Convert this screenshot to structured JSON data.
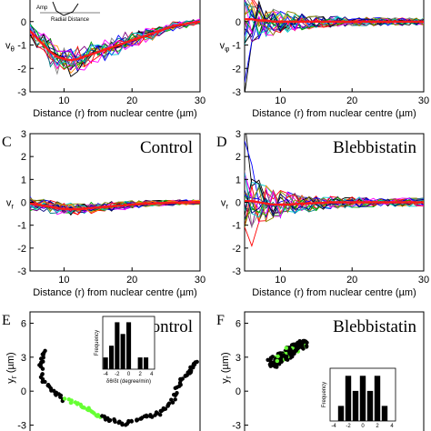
{
  "panels": [
    {
      "id": "A",
      "letter": "",
      "ylabel": "v",
      "ysub": "θ",
      "condition": "",
      "inset_label": "Radial Distance",
      "inset_y": "Amp",
      "xlabel": "Distance (r) from nuclear centre (µm)"
    },
    {
      "id": "B",
      "letter": "",
      "ylabel": "v",
      "ysub": "φ",
      "condition": "",
      "xlabel": "Distance (r) from nuclear centre (µm)"
    },
    {
      "id": "C",
      "letter": "C",
      "ylabel": "v",
      "ysub": "r",
      "condition": "Control",
      "xlabel": "Distance (r) from nuclear centre (µm)"
    },
    {
      "id": "D",
      "letter": "D",
      "ylabel": "v",
      "ysub": "r",
      "condition": "Blebbistatin",
      "xlabel": "Distance (r) from nuclear centre (µm)"
    },
    {
      "id": "E",
      "letter": "E",
      "ylabel": "y",
      "ysub": "r",
      "yunit": " (µm)",
      "condition": "Control",
      "inset_ylabel": "Frequency",
      "inset_xlabel": "δθ/δt (degree/min)"
    },
    {
      "id": "F",
      "letter": "F",
      "ylabel": "y",
      "ysub": "r",
      "yunit": " (µm)",
      "condition": "Blebbistatin",
      "inset_ylabel": "Frequency"
    }
  ],
  "colors": {
    "mean": "#ff1a1a",
    "series": [
      "#000000",
      "#ff0000",
      "#0000ff",
      "#00aa00",
      "#ff00ff",
      "#00cccc",
      "#888800",
      "#000080",
      "#800080",
      "#ff8800",
      "#008080",
      "#808080"
    ],
    "track_points": "#000000",
    "track_highlight": "#66ff33",
    "bars": "#000000"
  },
  "chart_data": [
    {
      "type": "line",
      "panel": "A",
      "x_range": [
        5,
        30
      ],
      "ylim": [
        -3,
        1
      ],
      "xticks": [
        10,
        20,
        30
      ],
      "yticks": [
        -3,
        -2,
        -1,
        0
      ],
      "x": [
        5,
        6,
        7,
        8,
        9,
        10,
        11,
        12,
        13,
        14,
        15,
        16,
        17,
        18,
        19,
        20,
        21,
        22,
        23,
        24,
        25,
        26,
        27,
        28,
        29,
        30
      ],
      "mean": [
        -0.4,
        -0.7,
        -1.0,
        -1.3,
        -1.5,
        -1.6,
        -1.65,
        -1.6,
        -1.5,
        -1.4,
        -1.3,
        -1.2,
        -1.1,
        -1.0,
        -0.9,
        -0.8,
        -0.7,
        -0.6,
        -0.5,
        -0.4,
        -0.3,
        -0.2,
        -0.15,
        -0.1,
        -0.05,
        0.0
      ]
    },
    {
      "type": "line",
      "panel": "B",
      "x_range": [
        5,
        30
      ],
      "ylim": [
        -3,
        1
      ],
      "xticks": [
        10,
        20,
        30
      ],
      "yticks": [
        -3,
        -2,
        -1,
        0
      ],
      "x": [
        5,
        6,
        7,
        8,
        9,
        10,
        11,
        12,
        13,
        14,
        15,
        16,
        17,
        18,
        19,
        20,
        21,
        22,
        23,
        24,
        25,
        26,
        27,
        28,
        29,
        30
      ],
      "mean": [
        0.1,
        0.1,
        0.05,
        0.05,
        0.0,
        0.0,
        0.0,
        0.0,
        0.0,
        0.0,
        0.0,
        0.0,
        0.0,
        0.0,
        0.0,
        0.0,
        0.0,
        0.0,
        0.0,
        0.0,
        0.0,
        0.0,
        0.0,
        0.0,
        0.0,
        0.0
      ]
    },
    {
      "type": "line",
      "panel": "C",
      "x_range": [
        5,
        30
      ],
      "ylim": [
        -3,
        3
      ],
      "xticks": [
        10,
        20,
        30
      ],
      "yticks": [
        -3,
        -2,
        -1,
        0,
        1,
        2,
        3
      ],
      "x": [
        5,
        6,
        7,
        8,
        9,
        10,
        11,
        12,
        13,
        14,
        15,
        16,
        17,
        18,
        19,
        20,
        21,
        22,
        23,
        24,
        25,
        26,
        27,
        28,
        29,
        30
      ],
      "mean": [
        -0.05,
        -0.1,
        -0.15,
        -0.2,
        -0.25,
        -0.3,
        -0.3,
        -0.3,
        -0.28,
        -0.25,
        -0.22,
        -0.2,
        -0.18,
        -0.15,
        -0.13,
        -0.1,
        -0.08,
        -0.06,
        -0.05,
        -0.04,
        -0.03,
        -0.02,
        -0.01,
        0.0,
        0.0,
        0.0
      ]
    },
    {
      "type": "line",
      "panel": "D",
      "x_range": [
        5,
        30
      ],
      "ylim": [
        -3,
        3
      ],
      "xticks": [
        10,
        20,
        30
      ],
      "yticks": [
        -3,
        -2,
        -1,
        0,
        1,
        2,
        3
      ],
      "x": [
        5,
        6,
        7,
        8,
        9,
        10,
        11,
        12,
        13,
        14,
        15,
        16,
        17,
        18,
        19,
        20,
        21,
        22,
        23,
        24,
        25,
        26,
        27,
        28,
        29,
        30
      ],
      "mean": [
        0.05,
        0.05,
        0.0,
        -0.05,
        -0.1,
        -0.1,
        -0.1,
        -0.08,
        -0.05,
        -0.05,
        -0.03,
        -0.02,
        0.0,
        0.0,
        0.0,
        0.0,
        0.0,
        0.0,
        0.0,
        0.0,
        0.0,
        0.0,
        0.0,
        0.0,
        0.0,
        0.0
      ]
    },
    {
      "type": "scatter",
      "panel": "E",
      "ylim": [
        -4,
        7
      ],
      "yticks": [
        -3,
        0,
        3,
        6
      ]
    },
    {
      "type": "bar",
      "panel": "E-inset",
      "xticks": [
        -4,
        -2,
        0,
        2,
        4
      ],
      "categories": [
        -4,
        -3,
        -2,
        -1,
        0,
        1,
        2,
        3,
        4
      ],
      "values": [
        1,
        2,
        4,
        3,
        4,
        0,
        1,
        1,
        0
      ],
      "ylabel": "Frequency",
      "xlabel": "δθ/δt (degree/min)"
    },
    {
      "type": "scatter",
      "panel": "F",
      "ylim": [
        -4,
        7
      ],
      "yticks": [
        -3,
        0,
        3,
        6
      ]
    },
    {
      "type": "bar",
      "panel": "F-inset",
      "xticks": [
        -4,
        -2,
        0,
        2,
        4
      ],
      "categories": [
        -3,
        -2,
        -1,
        0,
        1,
        2,
        3
      ],
      "values": [
        1,
        3,
        2,
        3,
        2,
        3,
        1
      ],
      "ylabel": "Frequency"
    }
  ]
}
